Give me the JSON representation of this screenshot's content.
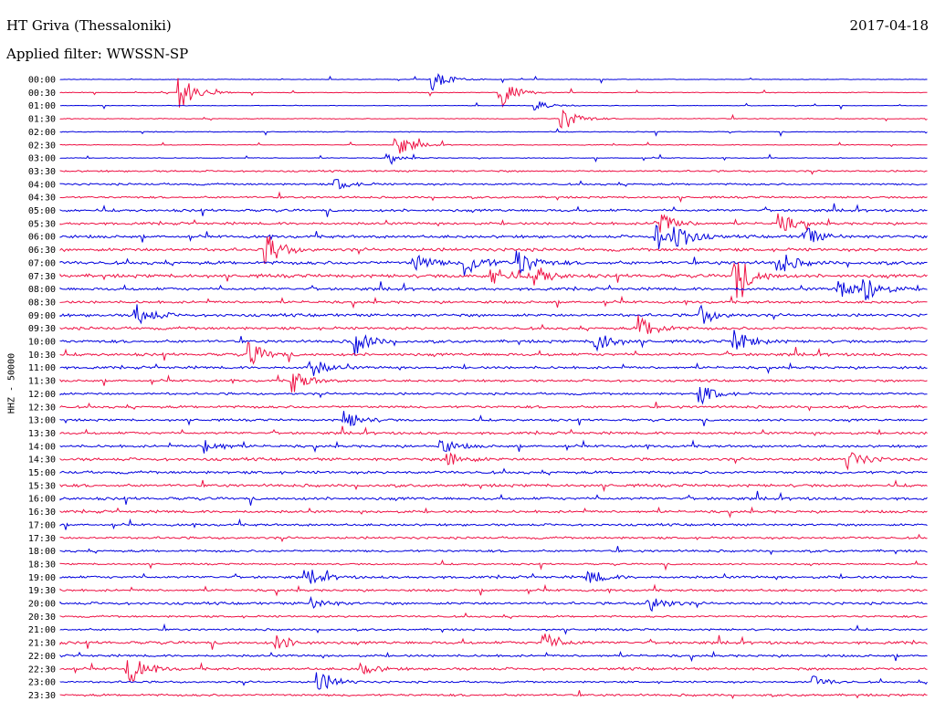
{
  "header": {
    "station": "HT Griva (Thessaloniki)",
    "date": "2017-04-18",
    "filter": "Applied filter: WWSSN-SP"
  },
  "axis": {
    "channel_label": "HHZ - 50000"
  },
  "colors": {
    "trace_a": "#0000dd",
    "trace_b": "#ee1144",
    "text": "#000000"
  },
  "chart_data": {
    "type": "line",
    "title": "HT Griva (Thessaloniki)",
    "subtitle": "Applied filter: WWSSN-SP",
    "ylabel": "HHZ - 50000",
    "xlabel": "",
    "grid": false,
    "legend": "none",
    "row_labels": [
      "00:00",
      "00:30",
      "01:00",
      "01:30",
      "02:00",
      "02:30",
      "03:00",
      "03:30",
      "04:00",
      "04:30",
      "05:00",
      "05:30",
      "06:00",
      "06:30",
      "07:00",
      "07:30",
      "08:00",
      "08:30",
      "09:00",
      "09:30",
      "10:00",
      "10:30",
      "11:00",
      "11:30",
      "12:00",
      "12:30",
      "13:00",
      "13:30",
      "14:00",
      "14:30",
      "15:00",
      "15:30",
      "16:00",
      "16:30",
      "17:00",
      "17:30",
      "18:00",
      "18:30",
      "19:00",
      "19:30",
      "20:00",
      "20:30",
      "21:00",
      "21:30",
      "22:00",
      "22:30",
      "23:00",
      "23:30"
    ],
    "row_colors": [
      "trace_a",
      "trace_b"
    ],
    "noise_level": [
      0.2,
      0.25,
      0.2,
      0.3,
      0.3,
      0.3,
      0.25,
      0.6,
      0.7,
      0.7,
      0.9,
      0.9,
      1.0,
      1.1,
      1.2,
      1.2,
      1.0,
      0.9,
      1.0,
      1.0,
      1.0,
      1.0,
      0.9,
      0.8,
      0.8,
      0.9,
      0.8,
      0.9,
      0.9,
      1.0,
      1.0,
      1.0,
      1.0,
      0.9,
      0.8,
      0.8,
      0.8,
      0.6,
      0.9,
      0.8,
      0.9,
      0.7,
      0.7,
      1.0,
      0.8,
      0.9,
      0.7,
      0.8
    ],
    "events": [
      {
        "row": 0,
        "x": 0.43,
        "amp": 12
      },
      {
        "row": 1,
        "x": 0.14,
        "amp": 18
      },
      {
        "row": 1,
        "x": 0.51,
        "amp": 15
      },
      {
        "row": 2,
        "x": 0.55,
        "amp": 5
      },
      {
        "row": 3,
        "x": 0.58,
        "amp": 14
      },
      {
        "row": 5,
        "x": 0.39,
        "amp": 12
      },
      {
        "row": 6,
        "x": 0.38,
        "amp": 4
      },
      {
        "row": 8,
        "x": 0.32,
        "amp": 6
      },
      {
        "row": 11,
        "x": 0.69,
        "amp": 14
      },
      {
        "row": 11,
        "x": 0.83,
        "amp": 10
      },
      {
        "row": 12,
        "x": 0.69,
        "amp": 12
      },
      {
        "row": 12,
        "x": 0.71,
        "amp": 14
      },
      {
        "row": 12,
        "x": 0.86,
        "amp": 10
      },
      {
        "row": 13,
        "x": 0.24,
        "amp": 16
      },
      {
        "row": 14,
        "x": 0.47,
        "amp": 14
      },
      {
        "row": 14,
        "x": 0.53,
        "amp": 14
      },
      {
        "row": 14,
        "x": 0.41,
        "amp": 10
      },
      {
        "row": 14,
        "x": 0.83,
        "amp": 12
      },
      {
        "row": 15,
        "x": 0.78,
        "amp": 24
      },
      {
        "row": 15,
        "x": 0.5,
        "amp": 10
      },
      {
        "row": 15,
        "x": 0.55,
        "amp": 10
      },
      {
        "row": 16,
        "x": 0.93,
        "amp": 14
      },
      {
        "row": 16,
        "x": 0.9,
        "amp": 10
      },
      {
        "row": 18,
        "x": 0.09,
        "amp": 12
      },
      {
        "row": 18,
        "x": 0.74,
        "amp": 10
      },
      {
        "row": 19,
        "x": 0.67,
        "amp": 14
      },
      {
        "row": 20,
        "x": 0.34,
        "amp": 14
      },
      {
        "row": 20,
        "x": 0.62,
        "amp": 12
      },
      {
        "row": 20,
        "x": 0.78,
        "amp": 12
      },
      {
        "row": 21,
        "x": 0.22,
        "amp": 12
      },
      {
        "row": 22,
        "x": 0.29,
        "amp": 10
      },
      {
        "row": 23,
        "x": 0.27,
        "amp": 12
      },
      {
        "row": 24,
        "x": 0.74,
        "amp": 10
      },
      {
        "row": 26,
        "x": 0.33,
        "amp": 10
      },
      {
        "row": 28,
        "x": 0.17,
        "amp": 8
      },
      {
        "row": 28,
        "x": 0.44,
        "amp": 8
      },
      {
        "row": 29,
        "x": 0.91,
        "amp": 10
      },
      {
        "row": 29,
        "x": 0.45,
        "amp": 8
      },
      {
        "row": 38,
        "x": 0.29,
        "amp": 7
      },
      {
        "row": 38,
        "x": 0.61,
        "amp": 8
      },
      {
        "row": 40,
        "x": 0.68,
        "amp": 10
      },
      {
        "row": 40,
        "x": 0.29,
        "amp": 6
      },
      {
        "row": 43,
        "x": 0.56,
        "amp": 10
      },
      {
        "row": 43,
        "x": 0.25,
        "amp": 8
      },
      {
        "row": 45,
        "x": 0.08,
        "amp": 16
      },
      {
        "row": 45,
        "x": 0.35,
        "amp": 6
      },
      {
        "row": 46,
        "x": 0.3,
        "amp": 12
      },
      {
        "row": 46,
        "x": 0.87,
        "amp": 6
      }
    ]
  }
}
